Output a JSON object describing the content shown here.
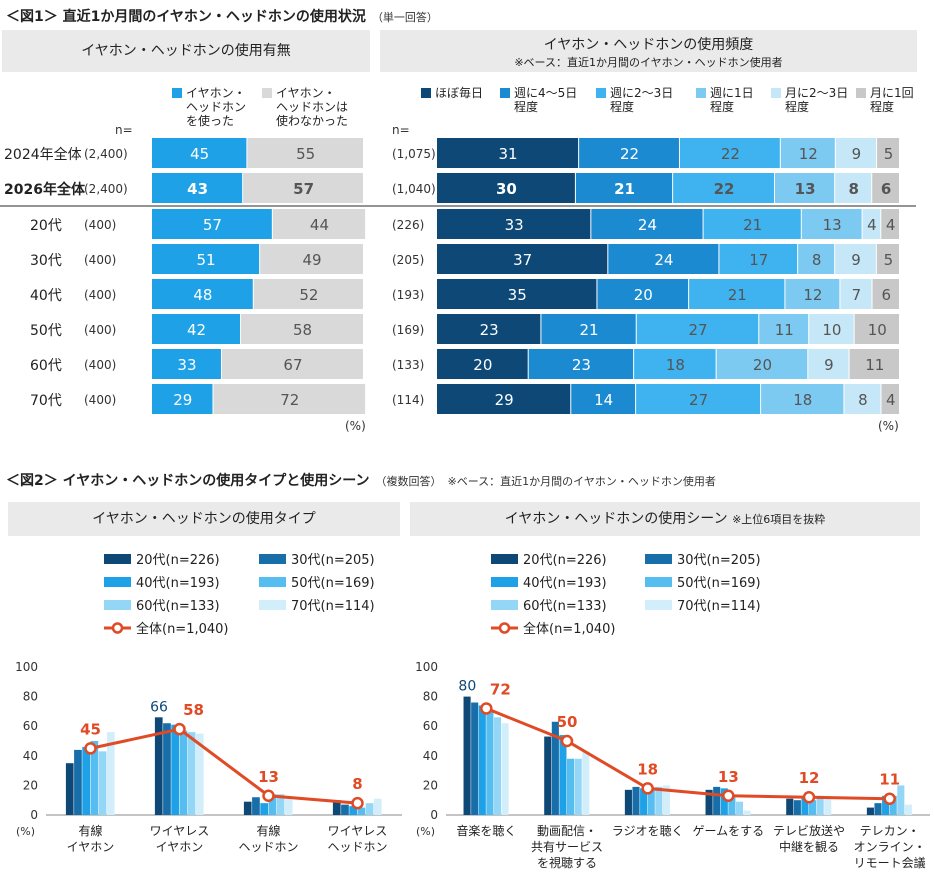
{
  "fig1": {
    "title": "＜図1＞ 直近1か月間のイヤホン・ヘッドホンの使用状況",
    "note": "（単一回答）",
    "left_header": "イヤホン・ヘッドホンの使用有無",
    "right_header": "イヤホン・ヘッドホンの使用頻度",
    "right_sub": "※ベース：直近1か月間のイヤホン・ヘッドホン使用者",
    "n_label_left": "n=",
    "n_label_right": "n=",
    "pct": "(%)",
    "left_legend": [
      {
        "label": "イヤホン・\nヘッドホン\nを使った",
        "color": "#1ea1e6"
      },
      {
        "label": "イヤホン・\nヘッドホンは\n使わなかった",
        "color": "#d9d9d9"
      }
    ],
    "right_legend": [
      {
        "label": "ほぼ毎日",
        "color": "#0d4876"
      },
      {
        "label": "週に4～5日\n程度",
        "color": "#1b8ad1"
      },
      {
        "label": "週に2～3日\n程度",
        "color": "#3fb3ef"
      },
      {
        "label": "週に1日\n程度",
        "color": "#7ccaf2"
      },
      {
        "label": "月に2～3日\n程度",
        "color": "#c6e7f8"
      },
      {
        "label": "月に1回\n程度",
        "color": "#c8c8c8"
      }
    ]
  },
  "chart_data": [
    {
      "type": "bar",
      "title": "イヤホン・ヘッドホンの使用有無",
      "orientation": "horizontal-stacked",
      "categories": [
        "2024年全体",
        "2026年全体",
        "20代",
        "30代",
        "40代",
        "50代",
        "60代",
        "70代"
      ],
      "n": [
        "(2,400)",
        "(2,400)",
        "(400)",
        "(400)",
        "(400)",
        "(400)",
        "(400)",
        "(400)"
      ],
      "series": [
        {
          "name": "イヤホン・ヘッドホンを使った",
          "values": [
            45,
            43,
            57,
            51,
            48,
            42,
            33,
            29
          ]
        },
        {
          "name": "イヤホン・ヘッドホンは使わなかった",
          "values": [
            55,
            57,
            44,
            49,
            52,
            58,
            67,
            72
          ]
        }
      ],
      "unit": "%"
    },
    {
      "type": "bar",
      "title": "イヤホン・ヘッドホンの使用頻度",
      "orientation": "horizontal-stacked",
      "categories": [
        "2024年全体",
        "2026年全体",
        "20代",
        "30代",
        "40代",
        "50代",
        "60代",
        "70代"
      ],
      "n": [
        "(1,075)",
        "(1,040)",
        "(226)",
        "(205)",
        "(193)",
        "(169)",
        "(133)",
        "(114)"
      ],
      "series": [
        {
          "name": "ほぼ毎日",
          "values": [
            31,
            30,
            33,
            37,
            35,
            23,
            20,
            29
          ]
        },
        {
          "name": "週に4～5日程度",
          "values": [
            22,
            21,
            24,
            24,
            20,
            21,
            23,
            14
          ]
        },
        {
          "name": "週に2～3日程度",
          "values": [
            22,
            22,
            21,
            17,
            21,
            27,
            18,
            27
          ]
        },
        {
          "name": "週に1日程度",
          "values": [
            12,
            13,
            13,
            8,
            12,
            11,
            20,
            18
          ]
        },
        {
          "name": "月に2～3日程度",
          "values": [
            9,
            8,
            4,
            9,
            7,
            10,
            9,
            8
          ]
        },
        {
          "name": "月に1回程度",
          "values": [
            5,
            6,
            4,
            5,
            6,
            10,
            11,
            4
          ]
        }
      ],
      "unit": "%"
    },
    {
      "type": "bar",
      "title": "イヤホン・ヘッドホンの使用タイプ",
      "categories": [
        "有線\nイヤホン",
        "ワイヤレス\nイヤホン",
        "有線\nヘッドホン",
        "ワイヤレス\nヘッドホン"
      ],
      "series": [
        {
          "name": "20代(n=226)",
          "values": [
            35,
            66,
            9,
            10
          ]
        },
        {
          "name": "30代(n=205)",
          "values": [
            44,
            62,
            12,
            7
          ]
        },
        {
          "name": "40代(n=193)",
          "values": [
            46,
            61,
            8,
            6
          ]
        },
        {
          "name": "50代(n=169)",
          "values": [
            50,
            57,
            14,
            5
          ]
        },
        {
          "name": "60代(n=133)",
          "values": [
            43,
            56,
            14,
            8
          ]
        },
        {
          "name": "70代(n=114)",
          "values": [
            56,
            55,
            12,
            11
          ]
        }
      ],
      "line": {
        "name": "全体(n=1,040)",
        "values": [
          45,
          58,
          13,
          8
        ]
      },
      "highlight_label": {
        "series": "20代(n=226)",
        "category": 1,
        "value": 66
      },
      "ylim": [
        0,
        100
      ],
      "yticks": [
        0,
        20,
        40,
        60,
        80,
        100
      ],
      "ylabel": "(%)"
    },
    {
      "type": "bar",
      "title": "イヤホン・ヘッドホンの使用シーン",
      "title_note": "※上位6項目を抜粋",
      "categories": [
        "音楽を聴く",
        "動画配信・\n共有サービス\nを視聴する",
        "ラジオを聴く",
        "ゲームをする",
        "テレビ放送や\n中継を観る",
        "テレカン・\nオンライン・\nリモート会議"
      ],
      "series": [
        {
          "name": "20代(n=226)",
          "values": [
            80,
            53,
            17,
            17,
            11,
            5
          ]
        },
        {
          "name": "30代(n=205)",
          "values": [
            76,
            63,
            19,
            19,
            10,
            8
          ]
        },
        {
          "name": "40代(n=193)",
          "values": [
            74,
            54,
            18,
            18,
            12,
            13
          ]
        },
        {
          "name": "50代(n=169)",
          "values": [
            70,
            38,
            17,
            12,
            10,
            13
          ]
        },
        {
          "name": "60代(n=133)",
          "values": [
            66,
            38,
            19,
            9,
            13,
            20
          ]
        },
        {
          "name": "70代(n=114)",
          "values": [
            62,
            43,
            20,
            3,
            13,
            7
          ]
        }
      ],
      "line": {
        "name": "全体(n=1,040)",
        "values": [
          72,
          50,
          18,
          13,
          12,
          11
        ]
      },
      "highlight_label": {
        "series": "20代(n=226)",
        "category": 0,
        "value": 80
      },
      "ylim": [
        0,
        100
      ],
      "yticks": [
        0,
        20,
        40,
        60,
        80,
        100
      ],
      "ylabel": "(%)"
    }
  ],
  "fig2": {
    "title": "＜図2＞ イヤホン・ヘッドホンの使用タイプと使用シーン",
    "note": "（複数回答）",
    "base_note": "※ベース：直近1か月間のイヤホン・ヘッドホン使用者",
    "colors": [
      "#0d4876",
      "#176ea8",
      "#1ea1e6",
      "#55bdf0",
      "#94d6f6",
      "#d3eefb"
    ],
    "line_color": "#e04a24"
  }
}
